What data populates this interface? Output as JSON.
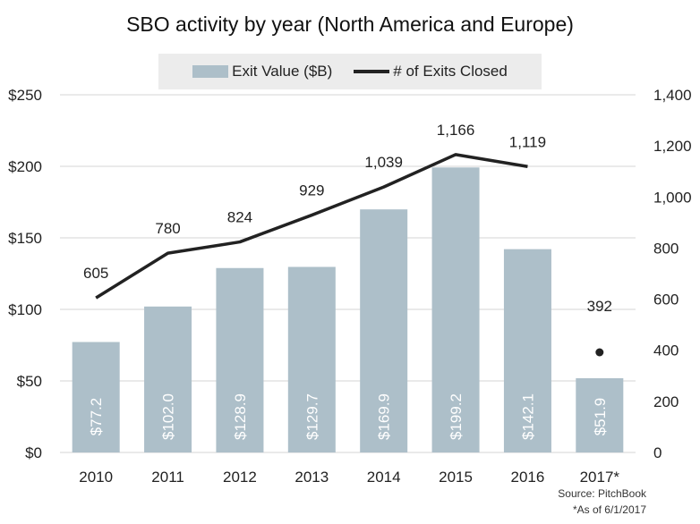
{
  "chart_data": {
    "type": "bar",
    "title": "SBO activity by year (North America and Europe)",
    "categories": [
      "2010",
      "2011",
      "2012",
      "2013",
      "2014",
      "2015",
      "2016",
      "2017*"
    ],
    "series": [
      {
        "name": "Exit Value ($B)",
        "type": "bar",
        "axis": "left",
        "values": [
          77.2,
          102.0,
          128.9,
          129.7,
          169.9,
          199.2,
          142.1,
          51.9
        ],
        "labels": [
          "$77.2",
          "$102.0",
          "$128.9",
          "$129.7",
          "$169.9",
          "$199.2",
          "$142.1",
          "$51.9"
        ],
        "color": "#adbfc9"
      },
      {
        "name": "# of Exits Closed",
        "type": "line",
        "axis": "right",
        "values": [
          605,
          780,
          824,
          929,
          1039,
          1166,
          1119,
          392
        ],
        "labels": [
          "605",
          "780",
          "824",
          "929",
          "1,039",
          "1,166",
          "1,119",
          "392"
        ],
        "color": "#222222",
        "last_point_marker_only": true
      }
    ],
    "y_left": {
      "ylim": [
        0,
        250
      ],
      "ticks": [
        0,
        50,
        100,
        150,
        200,
        250
      ],
      "tick_labels": [
        "$0",
        "$50",
        "$100",
        "$150",
        "$200",
        "$250"
      ]
    },
    "y_right": {
      "ylim": [
        0,
        1400
      ],
      "ticks": [
        0,
        200,
        400,
        600,
        800,
        1000,
        1200,
        1400
      ],
      "tick_labels": [
        "0",
        "200",
        "400",
        "600",
        "800",
        "1,000",
        "1,200",
        "1,400"
      ]
    },
    "grid": true,
    "legend_position": "top"
  },
  "source": "Source: PitchBook",
  "note": "*As of 6/1/2017"
}
